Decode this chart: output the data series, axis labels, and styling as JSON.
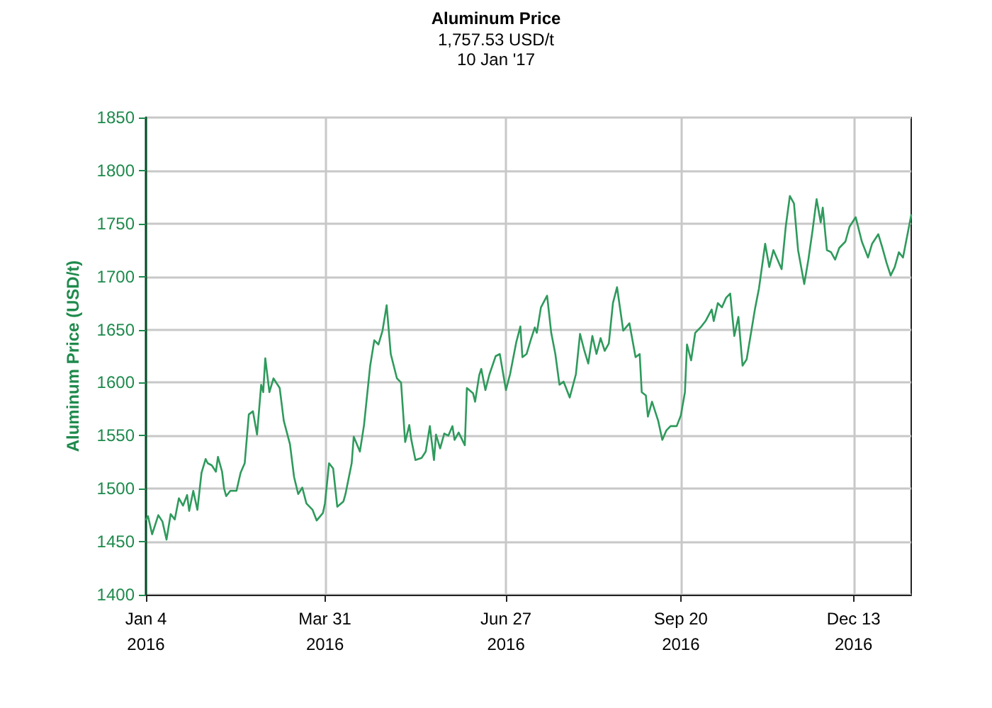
{
  "chart_data": {
    "type": "line",
    "title": "Aluminum Price",
    "subtitle": "1,757.53 USD/t\n10 Jan '17",
    "ylabel": "Aluminum Price (USD/t)",
    "x": [
      "2016-01-04",
      "2016-01-05",
      "2016-01-07",
      "2016-01-10",
      "2016-01-12",
      "2016-01-14",
      "2016-01-16",
      "2016-01-18",
      "2016-01-20",
      "2016-01-22",
      "2016-01-24",
      "2016-01-25",
      "2016-01-27",
      "2016-01-29",
      "2016-01-31",
      "2016-02-02",
      "2016-02-03",
      "2016-02-05",
      "2016-02-07",
      "2016-02-08",
      "2016-02-10",
      "2016-02-11",
      "2016-02-12",
      "2016-02-14",
      "2016-02-17",
      "2016-02-19",
      "2016-02-21",
      "2016-02-23",
      "2016-02-25",
      "2016-02-27",
      "2016-02-29",
      "2016-03-01",
      "2016-03-02",
      "2016-03-04",
      "2016-03-06",
      "2016-03-09",
      "2016-03-11",
      "2016-03-14",
      "2016-03-16",
      "2016-03-18",
      "2016-03-20",
      "2016-03-22",
      "2016-03-25",
      "2016-03-27",
      "2016-03-30",
      "2016-03-31",
      "2016-04-02",
      "2016-04-04",
      "2016-04-06",
      "2016-04-09",
      "2016-04-10",
      "2016-04-13",
      "2016-04-14",
      "2016-04-17",
      "2016-04-19",
      "2016-04-22",
      "2016-04-24",
      "2016-04-26",
      "2016-04-28",
      "2016-04-30",
      "2016-05-02",
      "2016-05-05",
      "2016-05-07",
      "2016-05-09",
      "2016-05-11",
      "2016-05-12",
      "2016-05-14",
      "2016-05-17",
      "2016-05-19",
      "2016-05-21",
      "2016-05-23",
      "2016-05-24",
      "2016-05-26",
      "2016-05-28",
      "2016-05-30",
      "2016-06-01",
      "2016-06-02",
      "2016-06-04",
      "2016-06-07",
      "2016-06-08",
      "2016-06-11",
      "2016-06-12",
      "2016-06-14",
      "2016-06-15",
      "2016-06-17",
      "2016-06-19",
      "2016-06-22",
      "2016-06-24",
      "2016-06-27",
      "2016-06-29",
      "2016-07-02",
      "2016-07-04",
      "2016-07-05",
      "2016-07-07",
      "2016-07-09",
      "2016-07-11",
      "2016-07-12",
      "2016-07-14",
      "2016-07-17",
      "2016-07-19",
      "2016-07-21",
      "2016-07-23",
      "2016-07-25",
      "2016-07-28",
      "2016-07-31",
      "2016-08-02",
      "2016-08-04",
      "2016-08-06",
      "2016-08-08",
      "2016-08-10",
      "2016-08-12",
      "2016-08-14",
      "2016-08-16",
      "2016-08-18",
      "2016-08-20",
      "2016-08-23",
      "2016-08-26",
      "2016-08-29",
      "2016-08-31",
      "2016-09-01",
      "2016-09-03",
      "2016-09-04",
      "2016-09-06",
      "2016-09-09",
      "2016-09-11",
      "2016-09-13",
      "2016-09-15",
      "2016-09-18",
      "2016-09-20",
      "2016-09-22",
      "2016-09-23",
      "2016-09-25",
      "2016-09-27",
      "2016-09-30",
      "2016-10-02",
      "2016-10-05",
      "2016-10-06",
      "2016-10-08",
      "2016-10-10",
      "2016-10-12",
      "2016-10-14",
      "2016-10-16",
      "2016-10-18",
      "2016-10-20",
      "2016-10-22",
      "2016-10-26",
      "2016-10-28",
      "2016-10-31",
      "2016-11-02",
      "2016-11-04",
      "2016-11-06",
      "2016-11-08",
      "2016-11-10",
      "2016-11-12",
      "2016-11-14",
      "2016-11-16",
      "2016-11-19",
      "2016-11-21",
      "2016-11-23",
      "2016-11-25",
      "2016-11-27",
      "2016-11-28",
      "2016-11-30",
      "2016-12-02",
      "2016-12-04",
      "2016-12-06",
      "2016-12-09",
      "2016-12-11",
      "2016-12-14",
      "2016-12-17",
      "2016-12-20",
      "2016-12-22",
      "2016-12-25",
      "2016-12-27",
      "2016-12-29",
      "2016-12-31",
      "2017-01-02",
      "2017-01-04",
      "2017-01-06",
      "2017-01-10"
    ],
    "series": [
      {
        "color": "#2e9a5c",
        "values": [
          1471,
          1474,
          1457,
          1475,
          1469,
          1452,
          1476,
          1471,
          1491,
          1484,
          1494,
          1479,
          1498,
          1480,
          1515,
          1528,
          1524,
          1522,
          1516,
          1530,
          1516,
          1500,
          1493,
          1498,
          1498,
          1515,
          1524,
          1570,
          1573,
          1551,
          1598,
          1591,
          1623,
          1591,
          1604,
          1595,
          1564,
          1542,
          1511,
          1495,
          1501,
          1486,
          1480,
          1470,
          1477,
          1486,
          1524,
          1519,
          1483,
          1488,
          1495,
          1524,
          1549,
          1535,
          1560,
          1616,
          1640,
          1636,
          1649,
          1673,
          1627,
          1604,
          1600,
          1544,
          1560,
          1546,
          1527,
          1529,
          1535,
          1559,
          1527,
          1551,
          1538,
          1552,
          1550,
          1559,
          1546,
          1553,
          1541,
          1595,
          1590,
          1582,
          1607,
          1613,
          1593,
          1608,
          1625,
          1627,
          1593,
          1608,
          1638,
          1653,
          1624,
          1627,
          1640,
          1652,
          1647,
          1671,
          1682,
          1647,
          1627,
          1598,
          1601,
          1586,
          1608,
          1646,
          1631,
          1618,
          1644,
          1627,
          1642,
          1630,
          1637,
          1675,
          1690,
          1649,
          1656,
          1624,
          1627,
          1591,
          1588,
          1568,
          1582,
          1564,
          1546,
          1555,
          1559,
          1559,
          1569,
          1591,
          1636,
          1621,
          1647,
          1653,
          1658,
          1669,
          1658,
          1675,
          1671,
          1680,
          1684,
          1644,
          1662,
          1616,
          1622,
          1669,
          1689,
          1731,
          1709,
          1725,
          1716,
          1707,
          1747,
          1776,
          1769,
          1725,
          1693,
          1716,
          1743,
          1773,
          1751,
          1765,
          1725,
          1723,
          1716,
          1727,
          1733,
          1747,
          1756,
          1733,
          1718,
          1731,
          1740,
          1727,
          1713,
          1701,
          1709,
          1723,
          1718,
          1758
        ]
      }
    ],
    "xlim": [
      "2016-01-04",
      "2017-01-10"
    ],
    "xticks": [
      {
        "value": "2016-01-04",
        "label": "Jan 4\n2016"
      },
      {
        "value": "2016-03-31",
        "label": "Mar 31\n2016"
      },
      {
        "value": "2016-06-27",
        "label": "Jun 27\n2016"
      },
      {
        "value": "2016-09-20",
        "label": "Sep 20\n2016"
      },
      {
        "value": "2016-12-13",
        "label": "Dec 13\n2016"
      }
    ],
    "ylim": [
      1400,
      1850
    ],
    "yticks": [
      1400,
      1450,
      1500,
      1550,
      1600,
      1650,
      1700,
      1750,
      1800,
      1850
    ],
    "grid": true,
    "marker": "none",
    "line_style": "solid"
  }
}
